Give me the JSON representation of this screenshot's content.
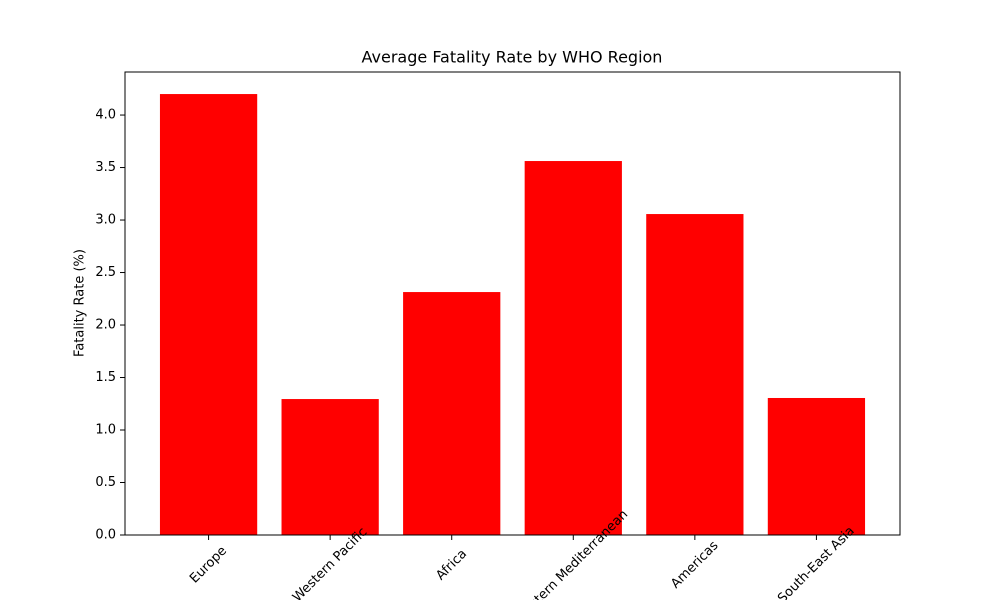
{
  "chart_data": {
    "type": "bar",
    "title": "Average Fatality Rate by WHO Region",
    "ylabel": "Fatality Rate (%)",
    "categories": [
      "Europe",
      "Western Pacific",
      "Africa",
      "Eastern Mediterranean",
      "Americas",
      "South-East Asia"
    ],
    "values": [
      4.2,
      1.295,
      2.314,
      3.562,
      3.057,
      1.305
    ],
    "color": "#ff0000",
    "ylim": [
      0,
      4.41
    ],
    "yticks": [
      {
        "value": 0,
        "label": "0.0"
      },
      {
        "value": 0.5,
        "label": "0.5"
      },
      {
        "value": 1,
        "label": "1.0"
      },
      {
        "value": 1.5,
        "label": "1.5"
      },
      {
        "value": 2,
        "label": "2.0"
      },
      {
        "value": 2.5,
        "label": "2.5"
      },
      {
        "value": 3,
        "label": "3.0"
      },
      {
        "value": 3.5,
        "label": "3.5"
      },
      {
        "value": 4,
        "label": "4.0"
      }
    ],
    "grid": false
  }
}
